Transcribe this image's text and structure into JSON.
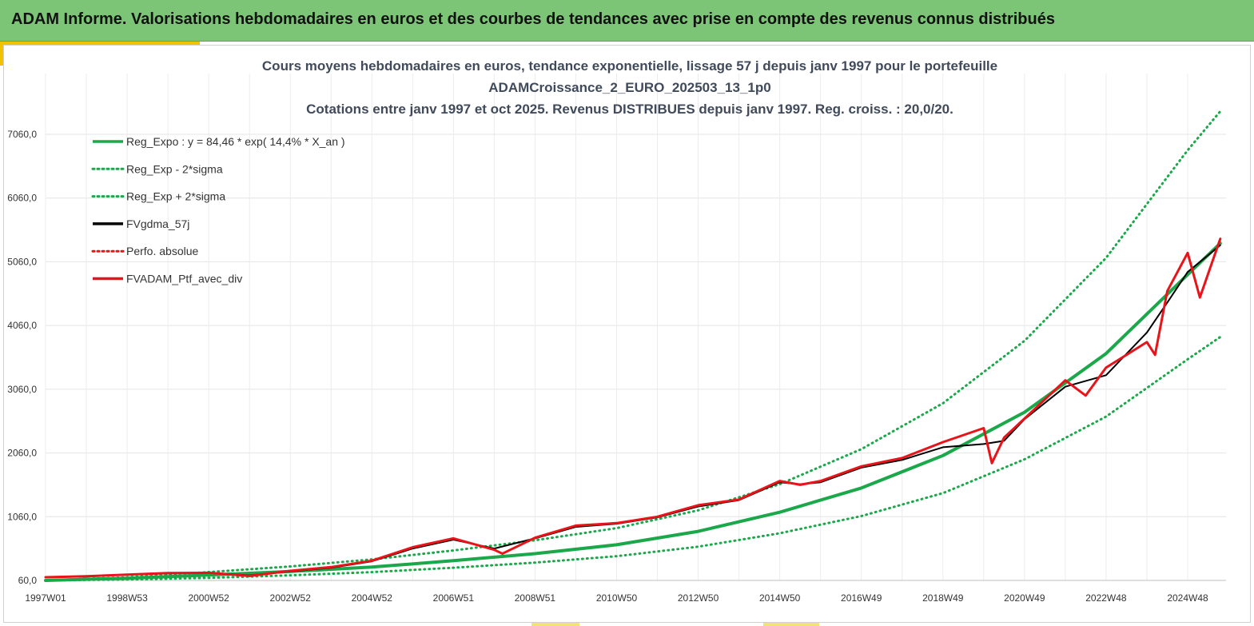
{
  "banner": {
    "title": "ADAM Informe. Valorisations hebdomadaires en euros et des courbes de tendances avec prise en compte des revenus connus distribués"
  },
  "colors": {
    "banner_bg": "#7cc576",
    "accent": "#f2c200",
    "trend_green": "#1aa84a",
    "smooth_black": "#000000",
    "portfolio_red": "#e8141a"
  },
  "chart_data": {
    "type": "line",
    "title_lines": [
      "Cours moyens hebdomadaires  en euros, tendance exponentielle, lissage 57 j depuis janv 1997 pour le portefeuille",
      "ADAMCroissance_2_EURO_202503_13_1p0",
      "Cotations  entre janv 1997 et oct 2025. Revenus DISTRIBUES depuis janv 1997. Reg. croiss. : 20,0/20."
    ],
    "x_tick_labels": [
      "1997W01",
      "1998W53",
      "2000W52",
      "2002W52",
      "2004W52",
      "2006W51",
      "2008W51",
      "2010W50",
      "2012W50",
      "2014W50",
      "2016W49",
      "2018W49",
      "2020W49",
      "2022W48",
      "2024W48"
    ],
    "x_tick_years": [
      1997.0,
      1999.0,
      2001.0,
      2003.0,
      2005.0,
      2007.0,
      2009.0,
      2011.0,
      2013.0,
      2015.0,
      2017.0,
      2019.0,
      2021.0,
      2023.0,
      2025.0
    ],
    "x_range": [
      1997.0,
      2025.8
    ],
    "y_tick_labels": [
      "60,0",
      "1060,0",
      "2060,0",
      "3060,0",
      "4060,0",
      "5060,0",
      "6060,0",
      "7060,0"
    ],
    "y_ticks": [
      60,
      1060,
      2060,
      3060,
      4060,
      5060,
      6060,
      7060
    ],
    "y_range": [
      60,
      7500
    ],
    "grid": true,
    "legend_position": "top-left",
    "legend": [
      {
        "label": "Reg_Expo : y = 84,46 * exp( 14,4% *  X_an )",
        "color": "#1aa84a",
        "style": "solid"
      },
      {
        "label": "Reg_Exp - 2*sigma",
        "color": "#1aa84a",
        "style": "dotted"
      },
      {
        "label": "Reg_Exp + 2*sigma",
        "color": "#1aa84a",
        "style": "dotted"
      },
      {
        "label": "FVgdma_57j",
        "color": "#000000",
        "style": "solid"
      },
      {
        "label": "Perfo. absolue",
        "color": "#e8141a",
        "style": "dotted"
      },
      {
        "label": "FVADAM_Ptf_avec_div",
        "color": "#e8141a",
        "style": "solid"
      }
    ],
    "series": [
      {
        "name": "Reg_Expo : y = 84,46 * exp( 14,4% *  X_an )",
        "x": [
          1997.0,
          1999.0,
          2001.0,
          2003.0,
          2005.0,
          2007.0,
          2009.0,
          2011.0,
          2013.0,
          2015.0,
          2017.0,
          2019.0,
          2021.0,
          2023.0,
          2025.0,
          2025.8
        ],
        "y": [
          60,
          95,
          145,
          200,
          270,
          370,
          480,
          620,
          830,
          1130,
          1510,
          2020,
          2700,
          3620,
          4860,
          5350
        ]
      },
      {
        "name": "Reg_Exp - 2*sigma",
        "x": [
          1997.0,
          1999.0,
          2001.0,
          2003.0,
          2005.0,
          2007.0,
          2009.0,
          2011.0,
          2013.0,
          2015.0,
          2017.0,
          2019.0,
          2021.0,
          2023.0,
          2025.0,
          2025.8
        ],
        "y": [
          60,
          75,
          100,
          140,
          190,
          260,
          340,
          440,
          590,
          800,
          1070,
          1430,
          1960,
          2630,
          3530,
          3880
        ]
      },
      {
        "name": "Reg_Exp + 2*sigma",
        "x": [
          1997.0,
          1999.0,
          2001.0,
          2003.0,
          2005.0,
          2007.0,
          2009.0,
          2011.0,
          2013.0,
          2015.0,
          2017.0,
          2019.0,
          2021.0,
          2023.0,
          2025.0,
          2025.8
        ],
        "y": [
          60,
          110,
          190,
          280,
          390,
          530,
          690,
          880,
          1160,
          1570,
          2120,
          2840,
          3820,
          5120,
          6810,
          7420
        ]
      },
      {
        "name": "FVgdma_57j",
        "x": [
          1997.0,
          1998.0,
          1999.0,
          2000.0,
          2001.0,
          2002.0,
          2003.0,
          2004.0,
          2005.0,
          2006.0,
          2007.0,
          2008.0,
          2009.0,
          2010.0,
          2011.0,
          2012.0,
          2013.0,
          2014.0,
          2015.0,
          2015.5,
          2016.0,
          2017.0,
          2018.0,
          2019.0,
          2020.0,
          2020.5,
          2021.0,
          2022.0,
          2023.0,
          2024.0,
          2024.5,
          2025.0,
          2025.8
        ],
        "y": [
          110,
          120,
          150,
          170,
          180,
          140,
          200,
          260,
          360,
          560,
          700,
          560,
          720,
          900,
          950,
          1050,
          1220,
          1320,
          1600,
          1570,
          1600,
          1830,
          1950,
          2150,
          2200,
          2250,
          2590,
          3100,
          3280,
          3950,
          4420,
          4900,
          5320
        ]
      },
      {
        "name": "FVADAM_Ptf_avec_div",
        "x": [
          1997.0,
          1998.0,
          1999.0,
          2000.0,
          2001.0,
          2002.0,
          2003.0,
          2004.0,
          2005.0,
          2006.0,
          2007.0,
          2008.0,
          2008.2,
          2009.0,
          2010.0,
          2011.0,
          2012.0,
          2013.0,
          2014.0,
          2015.0,
          2015.5,
          2016.0,
          2017.0,
          2018.0,
          2019.0,
          2020.0,
          2020.2,
          2020.5,
          2021.0,
          2022.0,
          2022.5,
          2023.0,
          2024.0,
          2024.2,
          2024.5,
          2025.0,
          2025.3,
          2025.8
        ],
        "y": [
          110,
          125,
          150,
          175,
          180,
          130,
          210,
          270,
          370,
          580,
          720,
          540,
          480,
          730,
          920,
          960,
          1060,
          1240,
          1330,
          1620,
          1560,
          1620,
          1850,
          1980,
          2230,
          2450,
          1900,
          2300,
          2600,
          3200,
          2960,
          3400,
          3800,
          3600,
          4600,
          5200,
          4500,
          5420
        ]
      }
    ]
  }
}
